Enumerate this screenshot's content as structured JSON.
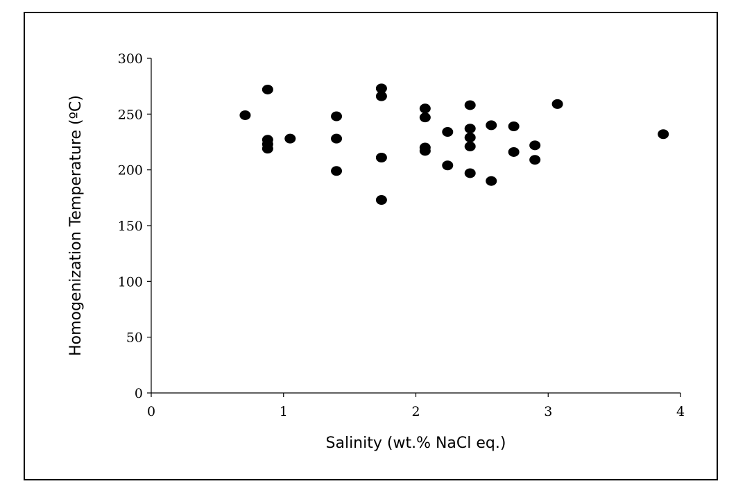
{
  "chart_data": {
    "type": "scatter",
    "title": "",
    "xlabel": "Salinity (wt.% NaCl eq.)",
    "ylabel": "Homogenization Temperature (ºC)",
    "xlim": [
      0,
      4
    ],
    "ylim": [
      0,
      300
    ],
    "x_ticks": [
      "0",
      "1",
      "2",
      "3",
      "4"
    ],
    "y_ticks": [
      "0",
      "50",
      "100",
      "150",
      "200",
      "250",
      "300"
    ],
    "grid": false,
    "legend": "none",
    "marker_color": "#000000",
    "points": [
      [
        0.71,
        249
      ],
      [
        0.88,
        272
      ],
      [
        0.88,
        227
      ],
      [
        0.88,
        223
      ],
      [
        0.88,
        219
      ],
      [
        1.05,
        228
      ],
      [
        1.4,
        248
      ],
      [
        1.4,
        228
      ],
      [
        1.4,
        199
      ],
      [
        1.74,
        273
      ],
      [
        1.74,
        266
      ],
      [
        1.74,
        211
      ],
      [
        1.74,
        173
      ],
      [
        2.07,
        255
      ],
      [
        2.07,
        247
      ],
      [
        2.07,
        220
      ],
      [
        2.07,
        217
      ],
      [
        2.24,
        234
      ],
      [
        2.24,
        204
      ],
      [
        2.41,
        258
      ],
      [
        2.41,
        237
      ],
      [
        2.41,
        229
      ],
      [
        2.41,
        221
      ],
      [
        2.41,
        197
      ],
      [
        2.57,
        240
      ],
      [
        2.57,
        190
      ],
      [
        2.74,
        239
      ],
      [
        2.74,
        216
      ],
      [
        2.9,
        222
      ],
      [
        2.9,
        209
      ],
      [
        3.07,
        259
      ],
      [
        3.87,
        232
      ]
    ]
  }
}
